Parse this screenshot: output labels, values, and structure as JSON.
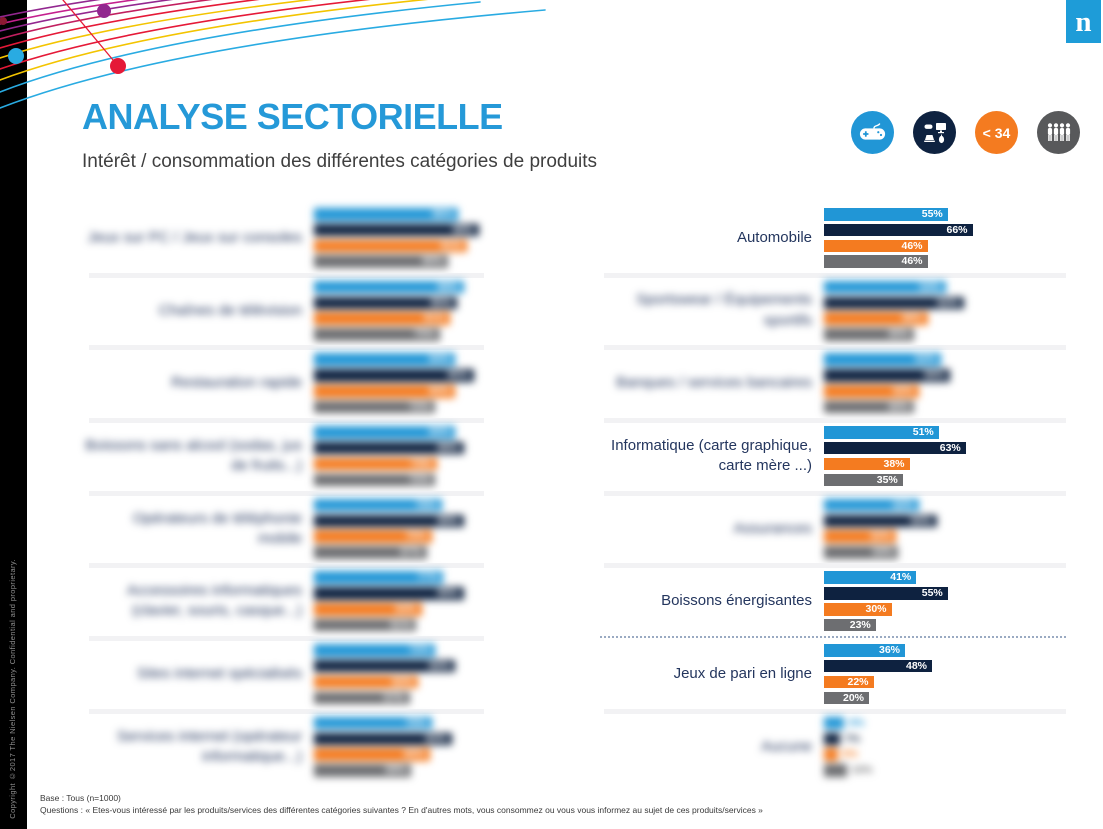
{
  "slide": {
    "title": "ANALYSE SECTORIELLE",
    "subtitle": "Intérêt / consommation des différentes catégories de produits",
    "logo_letter": "n",
    "copyright": "Copyright ©2017  The Nielsen Company. Confidential and proprietary.",
    "footer": {
      "base": "Base : Tous (n=1000)",
      "question": "Questions : « Etes-vous intéressé par les produits/services des différentes catégories suivantes ? En d'autres mots, vous consommez ou vous vous informez au sujet de ces produits/services »"
    }
  },
  "legend_icons": [
    {
      "icon": "gamepad-icon",
      "background": "#2196d6"
    },
    {
      "icon": "multi-device-icon",
      "background": "#0e2240"
    },
    {
      "icon": "under-34-badge",
      "background": "#f47b20",
      "text": "< 34"
    },
    {
      "icon": "people-group-icon",
      "background": "#58595b"
    }
  ],
  "colors": {
    "series": [
      "#2196d6",
      "#0e2240",
      "#f47b20",
      "#6d6e71"
    ],
    "title": "#2599d8",
    "label": "#24365e",
    "logo": "#1e9cd8"
  },
  "chart_data": {
    "type": "bar",
    "orientation": "horizontal",
    "xlim": [
      0,
      100
    ],
    "unit": "%",
    "series": [
      {
        "key": "blue",
        "icon": "gamepad-icon",
        "color": "#2196d6"
      },
      {
        "key": "navy",
        "icon": "multi-device-icon",
        "color": "#0e2240"
      },
      {
        "key": "orange",
        "icon": "under-34-badge",
        "color": "#f47b20"
      },
      {
        "key": "gray",
        "icon": "people-group-icon",
        "color": "#6d6e71"
      }
    ],
    "columns": [
      {
        "id": "left",
        "categories": [
          {
            "label": "Jeux sur PC / Jeux sur consoles",
            "values": [
              86,
              98,
              91,
              80
            ],
            "blurred": true
          },
          {
            "label": "Chaînes de télévision",
            "values": [
              89,
              85,
              81,
              75
            ],
            "blurred": true
          },
          {
            "label": "Restauration rapide",
            "values": [
              84,
              95,
              84,
              72
            ],
            "blurred": true
          },
          {
            "label": "Boissons sans alcool (sodas, jus de fruits...)",
            "values": [
              84,
              89,
              73,
              72
            ],
            "blurred": true
          },
          {
            "label": "Opérateurs de téléphonie mobile",
            "values": [
              76,
              89,
              70,
              67
            ],
            "blurred": true
          },
          {
            "label": "Accessoires informatiques (clavier, souris, casque...)",
            "values": [
              77,
              89,
              64,
              61
            ],
            "blurred": true
          },
          {
            "label": "Sites internet spécialisés",
            "values": [
              72,
              84,
              62,
              57
            ],
            "blurred": true
          },
          {
            "label": "Services internet (opérateur informatique...)",
            "values": [
              70,
              82,
              69,
              58
            ],
            "blurred": true
          }
        ]
      },
      {
        "id": "right",
        "categories": [
          {
            "label": "Automobile",
            "values": [
              55,
              66,
              46,
              46
            ],
            "blurred": false
          },
          {
            "label": "Sportswear / Équipements sportifs",
            "values": [
              54,
              62,
              46,
              40
            ],
            "blurred": true
          },
          {
            "label": "Banques / services bancaires",
            "values": [
              52,
              56,
              42,
              40
            ],
            "blurred": true
          },
          {
            "label": "Informatique (carte graphique, carte mère ...)",
            "values": [
              51,
              63,
              38,
              35
            ],
            "blurred": false
          },
          {
            "label": "Assurances",
            "values": [
              42,
              50,
              32,
              33
            ],
            "blurred": true
          },
          {
            "label": "Boissons énergisantes",
            "values": [
              41,
              55,
              30,
              23
            ],
            "blurred": false
          },
          {
            "label": "Jeux de pari en ligne",
            "values": [
              36,
              48,
              22,
              20
            ],
            "blurred": false,
            "separator_top": "dotted"
          },
          {
            "label": "Aucune",
            "values": [
              9,
              7,
              6,
              10
            ],
            "blurred": true,
            "values_outside": true
          }
        ]
      }
    ]
  }
}
